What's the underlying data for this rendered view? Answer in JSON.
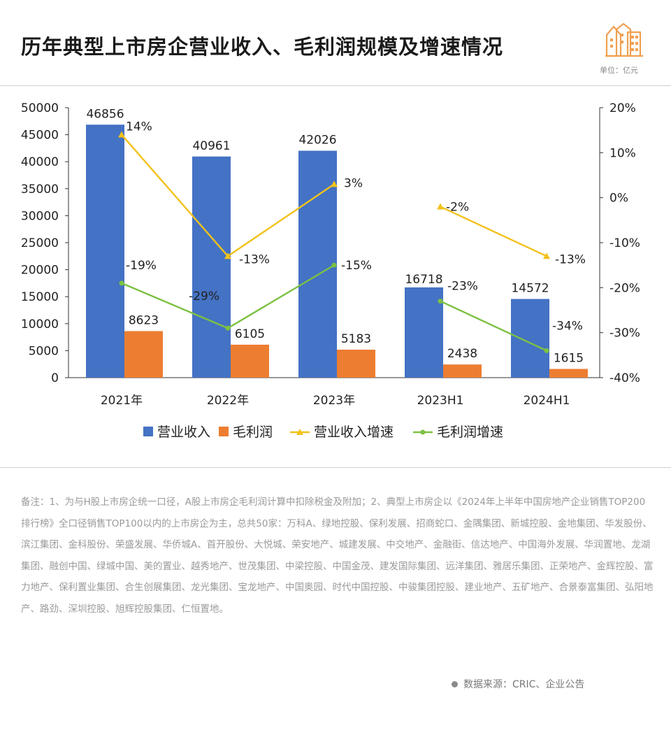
{
  "header": {
    "title": "历年典型上市房企营业收入、毛利润规模及增速情况",
    "unit": "单位：亿元",
    "logo_icon": "buildings-icon"
  },
  "chart_data": {
    "type": "bar",
    "categories": [
      "2021年",
      "2022年",
      "2023年",
      "2023H1",
      "2024H1"
    ],
    "series": [
      {
        "name": "营业收入",
        "kind": "bar",
        "axis": "left",
        "color": "#4472c4",
        "values": [
          46856,
          40961,
          42026,
          16718,
          14572
        ],
        "labels": [
          "46856",
          "40961",
          "42026",
          "16718",
          "14572"
        ]
      },
      {
        "name": "毛利润",
        "kind": "bar",
        "axis": "left",
        "color": "#ed7d31",
        "values": [
          8623,
          6105,
          5183,
          2438,
          1615
        ],
        "labels": [
          "8623",
          "6105",
          "5183",
          "2438",
          "1615"
        ]
      },
      {
        "name": "营业收入增速",
        "kind": "line",
        "axis": "right",
        "color": "#f2c21b",
        "values": [
          14,
          -13,
          3,
          -2,
          -13
        ],
        "labels": [
          "14%",
          "-13%",
          "3%",
          "-2%",
          "-13%"
        ],
        "segments": [
          [
            0,
            2
          ],
          [
            3,
            4
          ]
        ]
      },
      {
        "name": "毛利润增速",
        "kind": "line",
        "axis": "right",
        "color": "#7cc142",
        "values": [
          -19,
          -29,
          -15,
          -23,
          -34
        ],
        "labels": [
          "-19%",
          "-29%",
          "-15%",
          "-23%",
          "-34%"
        ],
        "segments": [
          [
            0,
            2
          ],
          [
            3,
            4
          ]
        ]
      }
    ],
    "y_left": {
      "min": 0,
      "max": 50000,
      "step": 5000,
      "ticks": [
        "0",
        "5000",
        "10000",
        "15000",
        "20000",
        "25000",
        "30000",
        "35000",
        "40000",
        "45000",
        "50000"
      ]
    },
    "y_right": {
      "min": -40,
      "max": 20,
      "step": 10,
      "ticks": [
        "-40%",
        "-30%",
        "-20%",
        "-10%",
        "0%",
        "10%",
        "20%"
      ]
    },
    "grid": false,
    "legend": "bottom"
  },
  "notes": "备注：1、为与H股上市房企统一口径，A股上市房企毛利润计算中扣除税金及附加；2、典型上市房企以《2024年上半年中国房地产企业销售TOP200排行榜》全口径销售TOP100以内的上市房企为主，总共50家：万科A、绿地控股、保利发展、招商蛇口、金隅集团、新城控股、金地集团、华发股份、滨江集团、金科股份、荣盛发展、华侨城A、首开股份、大悦城、荣安地产、城建发展、中交地产、金融街、信达地产、中国海外发展、华润置地、龙湖集团、融创中国、绿城中国、美的置业、越秀地产、世茂集团、中梁控股、中国金茂、建发国际集团、远洋集团、雅居乐集团、正荣地产、金辉控股、富力地产、保利置业集团、合生创展集团、龙光集团、宝龙地产、中国奥园、时代中国控股、中骏集团控股、建业地产、五矿地产、合景泰富集团、弘阳地产、路劲、深圳控股、旭辉控股集团、仁恒置地。",
  "source": "数据来源：CRIC、企业公告"
}
